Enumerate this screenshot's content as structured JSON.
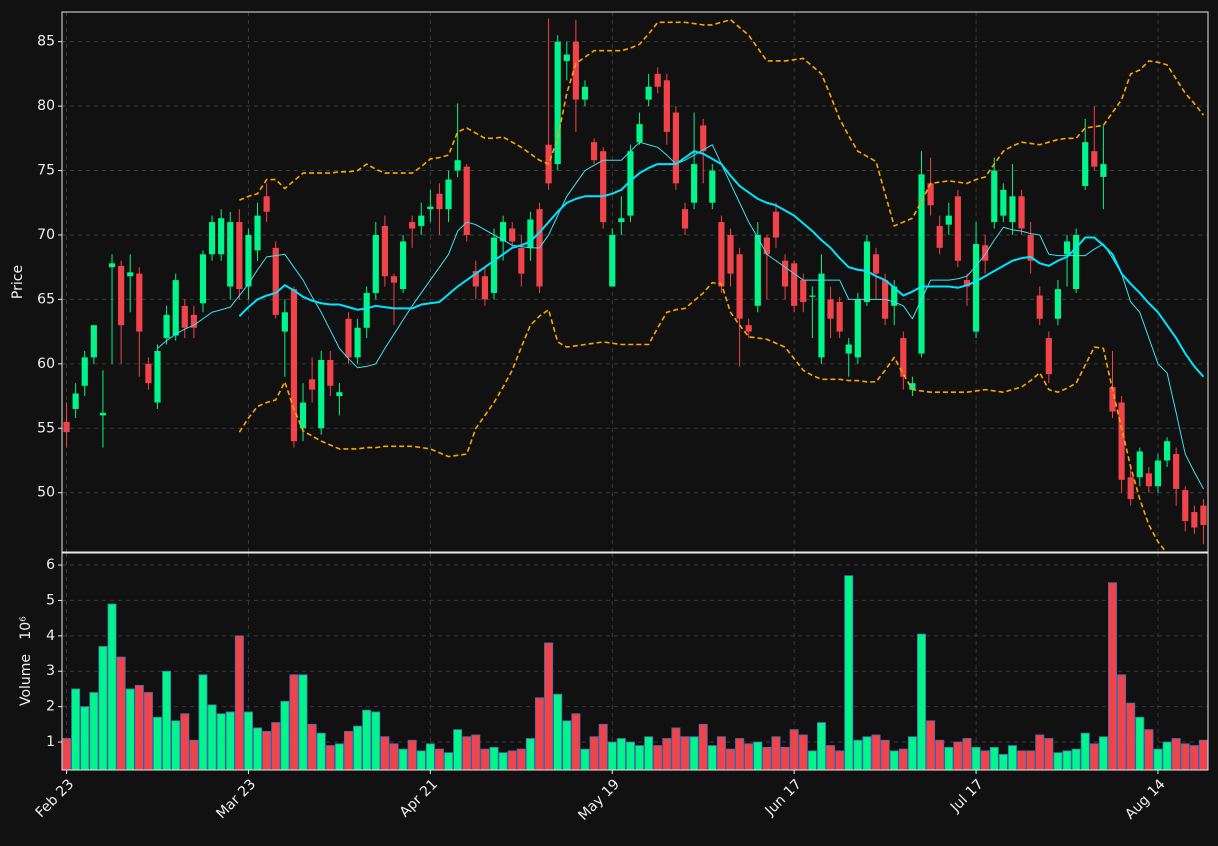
{
  "chart_data": {
    "type": "candlestick",
    "categories": [
      "Feb 23",
      null,
      null,
      null,
      null,
      null,
      null,
      null,
      null,
      null,
      null,
      null,
      null,
      null,
      null,
      null,
      null,
      null,
      null,
      null,
      "Mar 23",
      null,
      null,
      null,
      null,
      null,
      null,
      null,
      null,
      null,
      null,
      null,
      null,
      null,
      null,
      null,
      null,
      null,
      null,
      null,
      "Apr 21",
      null,
      null,
      null,
      null,
      null,
      null,
      null,
      null,
      null,
      null,
      null,
      null,
      null,
      null,
      null,
      null,
      null,
      null,
      null,
      "May 19",
      null,
      null,
      null,
      null,
      null,
      null,
      null,
      null,
      null,
      null,
      null,
      null,
      null,
      null,
      null,
      null,
      null,
      null,
      null,
      "Jun 17",
      null,
      null,
      null,
      null,
      null,
      null,
      null,
      null,
      null,
      null,
      null,
      null,
      null,
      null,
      null,
      null,
      null,
      null,
      null,
      "Jul 17",
      null,
      null,
      null,
      null,
      null,
      null,
      null,
      null,
      null,
      null,
      null,
      null,
      null,
      null,
      null,
      null,
      null,
      null,
      null,
      "Aug 14",
      null,
      null,
      null,
      null,
      null
    ],
    "open": [
      55.5,
      56.5,
      58.3,
      60.5,
      56,
      67.5,
      67.6,
      66.8,
      67,
      60,
      57,
      62,
      62.2,
      64.5,
      63.8,
      64.7,
      68.5,
      68.5,
      66,
      71,
      66,
      68.8,
      73,
      69,
      62.5,
      65.8,
      55,
      58.8,
      55,
      60.3,
      57.5,
      63.5,
      60.5,
      62.8,
      65.5,
      70.7,
      66.8,
      65.8,
      71,
      70.7,
      72,
      73.2,
      72,
      75,
      75.3,
      67.2,
      66.8,
      65.5,
      69.5,
      70.5,
      69,
      69,
      72,
      77,
      75.5,
      83.5,
      85,
      80.5,
      77.2,
      76.5,
      66,
      71,
      71.5,
      77.2,
      80.5,
      82.5,
      82,
      79.5,
      72,
      72.5,
      78.5,
      72.5,
      71,
      70,
      68.5,
      63,
      64.5,
      69.8,
      71.8,
      68,
      67.8,
      66.5,
      65.2,
      60.5,
      65,
      64.8,
      60.8,
      60.5,
      64.8,
      68.5,
      66.5,
      64.5,
      62,
      58,
      60.8,
      74,
      70.7,
      70.8,
      73,
      66.5,
      62.5,
      69.2,
      71,
      71.5,
      71,
      73,
      70,
      65.3,
      62,
      63.5,
      68.5,
      65.8,
      73.8,
      76.5,
      74.5,
      58.2,
      57,
      51.2,
      51.2,
      51.5,
      50.5,
      52.5,
      53,
      50.2,
      48.5,
      49
    ],
    "close": [
      54.7,
      57.7,
      60.5,
      63,
      56.2,
      67.8,
      63,
      67.1,
      62.5,
      58.5,
      61,
      63.8,
      66.5,
      62.8,
      62.8,
      68.5,
      71,
      71.3,
      71,
      65.8,
      70,
      71.5,
      71.8,
      63.8,
      64,
      54,
      57,
      58,
      60.3,
      58.3,
      57.8,
      60.5,
      62.8,
      65.5,
      70,
      66.8,
      66.3,
      69.5,
      70.5,
      71.5,
      72.2,
      72,
      74.3,
      75.8,
      70,
      66,
      65,
      69.8,
      71,
      69.5,
      67,
      71.2,
      66,
      74,
      85,
      84,
      80.5,
      81.5,
      75.8,
      71,
      70,
      71.3,
      76.5,
      78.6,
      81.5,
      81.5,
      78,
      74,
      70.5,
      75.5,
      76.5,
      75,
      66,
      67,
      63.5,
      62.5,
      70,
      68.5,
      69.8,
      66,
      64.5,
      64.8,
      65.3,
      67,
      63.5,
      62.5,
      61.5,
      65,
      69.5,
      67,
      63.5,
      66,
      59,
      58.5,
      74.7,
      72.3,
      69,
      71.5,
      68,
      66,
      69.3,
      68,
      75,
      73.5,
      73,
      70.5,
      68,
      63.5,
      59.2,
      65.8,
      69.5,
      70,
      77.2,
      75.3,
      75.5,
      56.3,
      51,
      49.5,
      53.2,
      50.5,
      52.5,
      54,
      50.3,
      47.8,
      47.3,
      47.5
    ],
    "high": [
      57,
      58.5,
      61,
      63,
      59.5,
      68.5,
      68,
      68.5,
      67.5,
      60.5,
      61.5,
      64.5,
      67,
      65,
      64.5,
      68.8,
      71.5,
      72,
      71.8,
      72,
      70.5,
      72.5,
      74,
      69.5,
      65,
      66,
      58.5,
      60.5,
      61,
      61,
      58.5,
      64,
      63.5,
      66,
      71,
      71.5,
      67,
      70,
      71.5,
      72.5,
      73.5,
      74,
      75,
      80.2,
      75.5,
      68,
      67.5,
      70.5,
      71.5,
      71,
      70,
      71.8,
      72.5,
      86.8,
      85.5,
      85,
      86.7,
      82,
      77.5,
      76.8,
      70.5,
      73,
      77,
      79.5,
      82.5,
      83,
      82.5,
      80,
      72.5,
      79.5,
      79,
      75.5,
      71.5,
      70.5,
      69,
      63.5,
      71,
      70,
      72.5,
      68.5,
      68,
      67,
      66,
      68.5,
      66,
      65.2,
      62,
      65.5,
      70,
      69,
      67,
      66.5,
      62.5,
      59,
      76.5,
      76,
      71.5,
      72.5,
      73.5,
      67,
      71,
      70,
      76,
      74,
      75.5,
      73.5,
      71,
      66,
      62.5,
      66.5,
      70,
      70.5,
      79,
      80,
      78.5,
      61,
      57.5,
      52,
      53.5,
      52,
      53,
      54.3,
      53.5,
      50.5,
      49,
      49.5
    ],
    "low": [
      53.5,
      55.8,
      57.5,
      60,
      53.5,
      60,
      60,
      64,
      59,
      58,
      56.5,
      61.5,
      61.8,
      62,
      62,
      64,
      68,
      68,
      65,
      65,
      65,
      68,
      71,
      63.5,
      59,
      53.5,
      54,
      57,
      54.5,
      57.5,
      56,
      60,
      60,
      62,
      65,
      66,
      63,
      65.5,
      69,
      70,
      71,
      70,
      71,
      74.5,
      69.5,
      65,
      64.5,
      65,
      68,
      69,
      66,
      68,
      65.5,
      73.5,
      75,
      82,
      78,
      80,
      75.5,
      70.5,
      66,
      70,
      71,
      77,
      80,
      81,
      77,
      73.5,
      70,
      72,
      74,
      72,
      65.5,
      66,
      59.8,
      62,
      64,
      65,
      69,
      65,
      64,
      64,
      62,
      60,
      62,
      62,
      59,
      60,
      64.5,
      65,
      63,
      63,
      58,
      57.5,
      60.5,
      71.5,
      68.5,
      70,
      67.5,
      64.5,
      62,
      67,
      70.5,
      71,
      70,
      70,
      67,
      63,
      58.5,
      63,
      66,
      65.5,
      73.5,
      75,
      72,
      55.8,
      50,
      49,
      50.5,
      50,
      50,
      52,
      49,
      47,
      46.8,
      46
    ],
    "up_color": "#00f58a",
    "down_color": "#f0434a",
    "ylabel": "Price",
    "ylim": [
      45.4,
      87.3
    ],
    "yticks": [
      50,
      55,
      60,
      65,
      70,
      75,
      80,
      85
    ],
    "grid": true,
    "overlays": [
      {
        "color": "#40e0f0",
        "values": [
          null,
          null,
          null,
          null,
          null,
          null,
          null,
          null,
          null,
          null,
          61.2,
          61.8,
          62.3,
          62.7,
          63,
          63.5,
          64,
          64.2,
          64.4,
          65.3,
          66.2,
          67.3,
          68.3,
          68.4,
          68.5,
          67.5,
          66.5,
          65.2,
          64,
          62.6,
          61.2,
          60.4,
          59.7,
          59.8,
          60,
          61.2,
          62.3,
          63.4,
          64.5,
          65.5,
          66.5,
          67.5,
          68.5,
          70.3,
          71,
          70.8,
          70.4,
          70,
          69.6,
          69.2,
          69.1,
          69,
          69,
          70,
          71.5,
          73,
          74,
          75,
          75.4,
          75.8,
          75.8,
          75.8,
          76.5,
          77.2,
          77,
          76.8,
          76.2,
          75.5,
          75.8,
          76.2,
          76.6,
          77,
          75.5,
          74,
          72.5,
          71,
          69.8,
          68.5,
          68,
          67.5,
          67,
          66.5,
          66.5,
          66.5,
          66.5,
          66.5,
          65,
          65,
          65,
          65,
          65,
          64.8,
          64.5,
          63.5,
          65,
          66.5,
          66.5,
          66.5,
          66.6,
          66.8,
          67.6,
          68.5,
          69.6,
          70.6,
          70.4,
          70.3,
          70.1,
          70,
          68.5,
          68.4,
          68.4,
          68.4,
          68.4,
          68.9,
          69.3,
          68.2,
          67,
          64.8,
          64,
          62,
          60,
          59.3,
          56.2,
          53,
          51.6,
          50.3
        ]
      },
      {
        "color": "#00e5ff",
        "values": [
          null,
          null,
          null,
          null,
          null,
          null,
          null,
          null,
          null,
          null,
          null,
          null,
          null,
          null,
          null,
          null,
          null,
          null,
          null,
          63.7,
          64.4,
          65,
          65.3,
          65.5,
          66.1,
          65.7,
          65.2,
          64.9,
          64.7,
          64.6,
          64.6,
          64.4,
          64.2,
          64.3,
          64.5,
          64.4,
          64.3,
          64.3,
          64.3,
          64.6,
          64.7,
          64.8,
          65.4,
          66,
          66.5,
          67,
          67.5,
          68,
          68.5,
          69,
          69.2,
          69.5,
          70.2,
          71,
          71.8,
          72.5,
          72.8,
          73,
          73,
          73,
          73.2,
          73.5,
          74.2,
          74.8,
          75.2,
          75.5,
          75.5,
          75.5,
          76,
          76.5,
          76.3,
          75.9,
          75.5,
          74.6,
          73.8,
          73.3,
          72.8,
          72.5,
          72.3,
          71.9,
          71.5,
          70.9,
          70.3,
          69.6,
          69,
          68.2,
          67.5,
          67.3,
          67.2,
          66.8,
          66.5,
          65.9,
          65.3,
          65.6,
          66,
          66,
          66,
          66,
          65.9,
          66.1,
          66.4,
          66.8,
          67.2,
          67.6,
          68,
          68.2,
          68.3,
          67.8,
          67.6,
          68,
          68.3,
          69,
          69.8,
          69.8,
          69.2,
          68.5,
          67,
          66.2,
          65.5,
          64.7,
          64,
          63,
          62,
          60.8,
          59.8,
          59
        ]
      },
      {
        "color": "#ffa500",
        "dashed": true,
        "values": [
          null,
          null,
          null,
          null,
          null,
          null,
          null,
          null,
          null,
          null,
          null,
          null,
          null,
          null,
          null,
          null,
          null,
          null,
          null,
          72.7,
          73,
          73.2,
          74.3,
          74.3,
          73.6,
          74.2,
          74.8,
          74.8,
          74.8,
          74.8,
          74.9,
          74.9,
          75,
          75.5,
          75.1,
          74.8,
          74.8,
          74.8,
          74.8,
          75.3,
          75.9,
          76,
          76.2,
          78,
          78.3,
          77.9,
          77.5,
          77.5,
          77.6,
          77.2,
          76.8,
          76.3,
          75.8,
          75.5,
          77.5,
          81,
          83.3,
          83.8,
          84.3,
          84.3,
          84.3,
          84.3,
          84.5,
          84.8,
          85.6,
          86.5,
          86.5,
          86.5,
          86.5,
          86.4,
          86.3,
          86.3,
          86.5,
          86.7,
          86.1,
          85.5,
          84.5,
          83.5,
          83.5,
          83.5,
          83.6,
          83.7,
          83.1,
          82.5,
          80.8,
          79,
          77.7,
          76.5,
          76.1,
          75.7,
          73.2,
          70.7,
          71,
          71.3,
          72.6,
          74,
          74.1,
          74.2,
          74.1,
          74,
          74.3,
          74.5,
          75.5,
          76.5,
          76.9,
          77.2,
          77.1,
          77,
          77.2,
          77.4,
          77.5,
          77.5,
          78.3,
          78.4,
          78.5,
          79.5,
          80.5,
          82.5,
          82.8,
          83.5,
          83.4,
          83.2,
          82.1,
          81,
          80.2,
          79.3
        ]
      },
      {
        "color": "#ffa500",
        "dashed": true,
        "values": [
          null,
          null,
          null,
          null,
          null,
          null,
          null,
          null,
          null,
          null,
          null,
          null,
          null,
          null,
          null,
          null,
          null,
          null,
          null,
          54.7,
          55.8,
          56.7,
          57,
          57.2,
          58.6,
          56.5,
          54.8,
          54.4,
          54,
          53.7,
          53.4,
          53.4,
          53.4,
          53.5,
          53.5,
          53.6,
          53.6,
          53.6,
          53.6,
          53.5,
          53.4,
          53.1,
          52.8,
          52.9,
          53,
          55,
          56,
          57,
          58.2,
          59.5,
          61.3,
          63,
          63.7,
          64.2,
          61.7,
          61.3,
          61.4,
          61.5,
          61.6,
          61.7,
          61.6,
          61.5,
          61.5,
          61.5,
          61.5,
          62.8,
          64,
          64.2,
          64.3,
          64.9,
          65.5,
          66.3,
          66.2,
          64,
          63,
          62.1,
          62,
          61.9,
          61.6,
          61.3,
          60.4,
          59.5,
          59.1,
          58.8,
          58.8,
          58.8,
          58.7,
          58.7,
          58.6,
          58.6,
          59.5,
          60.5,
          59.2,
          58,
          57.9,
          57.8,
          57.8,
          57.8,
          57.8,
          57.8,
          57.9,
          58,
          57.9,
          57.8,
          58,
          58.2,
          58.7,
          59.3,
          58,
          57.8,
          58.1,
          58.5,
          59.9,
          61.3,
          61.2,
          58,
          55,
          52,
          49.5,
          47.5,
          46.2,
          45.3,
          null,
          null,
          null,
          null
        ]
      }
    ],
    "volume": {
      "label": "Volume",
      "multiplier": "10⁶",
      "edge_color": "#4a6fb5",
      "ylim": [
        0.21,
        6.34
      ],
      "yticks": [
        1,
        2,
        3,
        4,
        5,
        6
      ],
      "values": [
        1.1,
        2.5,
        2.0,
        2.4,
        3.7,
        4.9,
        3.4,
        2.5,
        2.6,
        2.4,
        1.7,
        3.0,
        1.6,
        1.8,
        1.05,
        2.9,
        2.05,
        1.8,
        1.85,
        4.0,
        1.85,
        1.4,
        1.3,
        1.55,
        2.15,
        2.9,
        2.9,
        1.5,
        1.25,
        0.9,
        0.95,
        1.3,
        1.45,
        1.9,
        1.85,
        1.15,
        0.95,
        0.8,
        1.05,
        0.75,
        0.95,
        0.8,
        0.7,
        1.35,
        1.15,
        1.2,
        0.8,
        0.85,
        0.7,
        0.75,
        0.8,
        1.1,
        2.25,
        3.8,
        2.35,
        1.6,
        1.8,
        0.8,
        1.15,
        1.5,
        1.0,
        1.1,
        1.0,
        0.9,
        1.15,
        0.9,
        1.1,
        1.4,
        1.15,
        1.15,
        1.5,
        0.9,
        1.15,
        0.8,
        1.1,
        0.95,
        1.0,
        0.85,
        1.15,
        0.85,
        1.35,
        1.2,
        0.75,
        1.55,
        0.9,
        0.75,
        5.7,
        1.05,
        1.15,
        1.2,
        1.05,
        0.75,
        0.8,
        1.15,
        4.05,
        1.6,
        1.05,
        0.85,
        1.0,
        1.1,
        0.85,
        0.75,
        0.85,
        0.65,
        0.9,
        0.75,
        0.75,
        1.2,
        1.1,
        0.7,
        0.75,
        0.8,
        1.25,
        0.95,
        1.15,
        5.5,
        2.9,
        2.1,
        1.7,
        1.35,
        0.8,
        1.0,
        1.1,
        0.95,
        0.9,
        1.05
      ]
    }
  }
}
